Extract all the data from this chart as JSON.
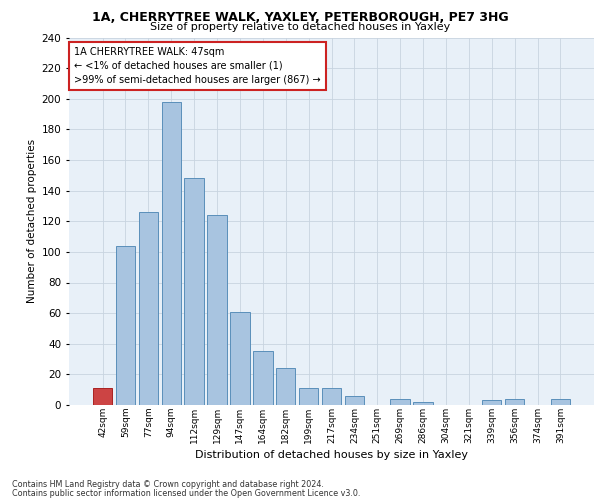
{
  "title1": "1A, CHERRYTREE WALK, YAXLEY, PETERBOROUGH, PE7 3HG",
  "title2": "Size of property relative to detached houses in Yaxley",
  "xlabel": "Distribution of detached houses by size in Yaxley",
  "ylabel": "Number of detached properties",
  "bar_labels": [
    "42sqm",
    "59sqm",
    "77sqm",
    "94sqm",
    "112sqm",
    "129sqm",
    "147sqm",
    "164sqm",
    "182sqm",
    "199sqm",
    "217sqm",
    "234sqm",
    "251sqm",
    "269sqm",
    "286sqm",
    "304sqm",
    "321sqm",
    "339sqm",
    "356sqm",
    "374sqm",
    "391sqm"
  ],
  "bar_values": [
    11,
    104,
    126,
    198,
    148,
    124,
    61,
    35,
    24,
    11,
    11,
    6,
    0,
    4,
    2,
    0,
    0,
    3,
    4,
    0,
    4
  ],
  "bar_color": "#a8c4e0",
  "bar_edge_color": "#5a8fba",
  "highlight_index": 0,
  "highlight_color": "#cc4444",
  "highlight_edge_color": "#aa2222",
  "annotation_text": "1A CHERRYTREE WALK: 47sqm\n← <1% of detached houses are smaller (1)\n>99% of semi-detached houses are larger (867) →",
  "box_color": "#ffffff",
  "box_edge_color": "#cc2222",
  "grid_color": "#c8d4e0",
  "bg_color": "#e8f0f8",
  "ylim": [
    0,
    240
  ],
  "yticks": [
    0,
    20,
    40,
    60,
    80,
    100,
    120,
    140,
    160,
    180,
    200,
    220,
    240
  ],
  "footer1": "Contains HM Land Registry data © Crown copyright and database right 2024.",
  "footer2": "Contains public sector information licensed under the Open Government Licence v3.0."
}
